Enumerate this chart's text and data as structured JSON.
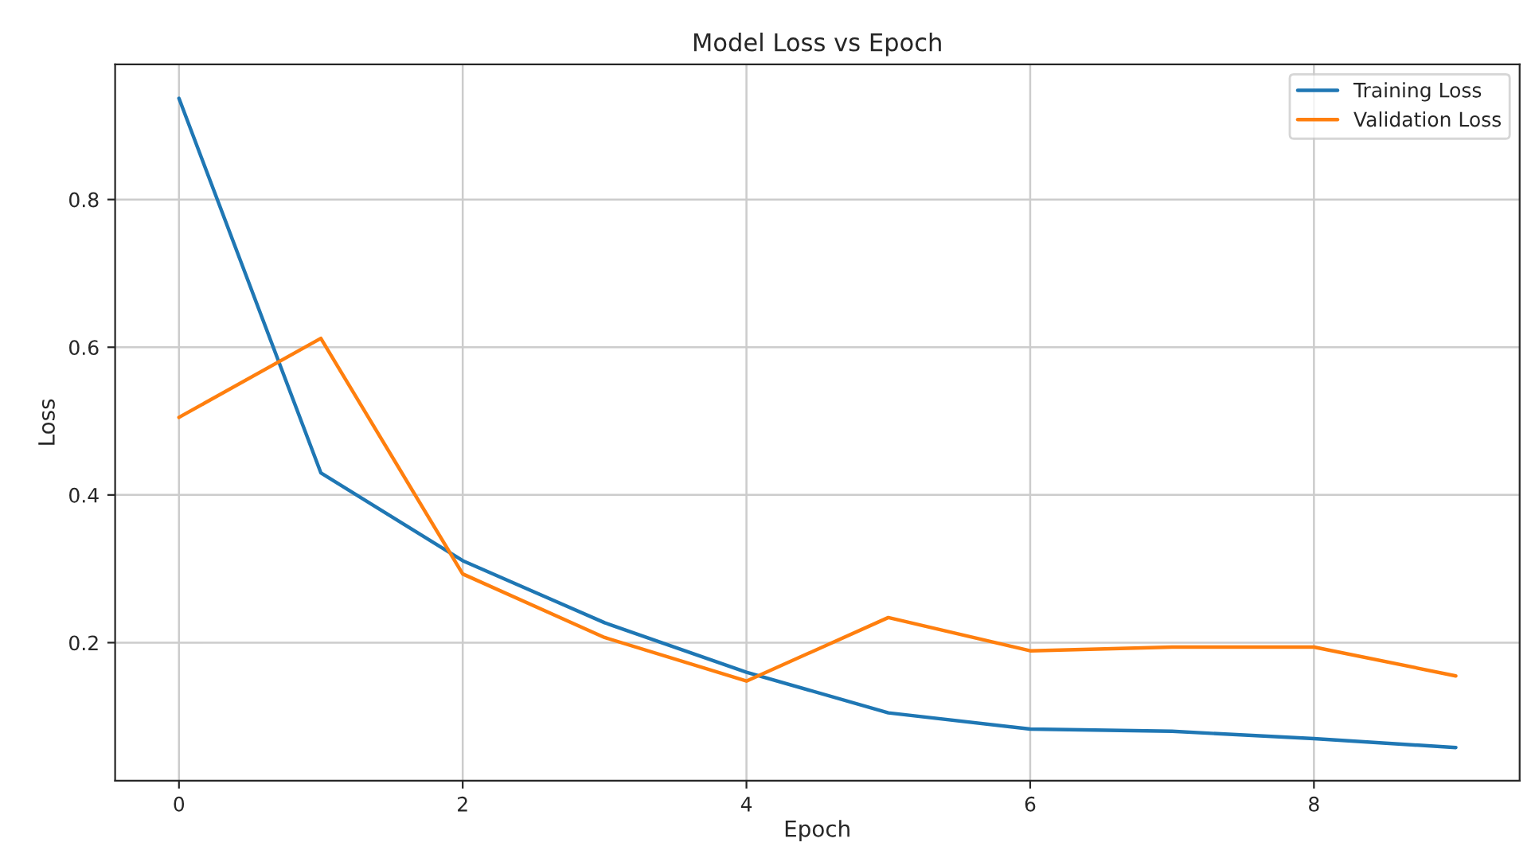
{
  "chart_data": {
    "type": "line",
    "title": "Model Loss vs Epoch",
    "xlabel": "Epoch",
    "ylabel": "Loss",
    "x": [
      0,
      1,
      2,
      3,
      4,
      5,
      6,
      7,
      8,
      9
    ],
    "series": [
      {
        "name": "Training Loss",
        "color": "#1f77b4",
        "values": [
          0.937,
          0.43,
          0.311,
          0.227,
          0.16,
          0.105,
          0.083,
          0.08,
          0.07,
          0.058
        ]
      },
      {
        "name": "Validation Loss",
        "color": "#ff7f0e",
        "values": [
          0.505,
          0.612,
          0.293,
          0.207,
          0.148,
          0.234,
          0.189,
          0.194,
          0.194,
          0.155
        ]
      }
    ],
    "xlim": [
      -0.45,
      9.45
    ],
    "xticks": [
      0,
      2,
      4,
      6,
      8
    ],
    "ylim": [
      0.013,
      0.983
    ],
    "yticks": [
      0.2,
      0.4,
      0.6,
      0.8
    ],
    "grid": true,
    "legend": "top right",
    "marker": "none",
    "line_style": "solid"
  }
}
